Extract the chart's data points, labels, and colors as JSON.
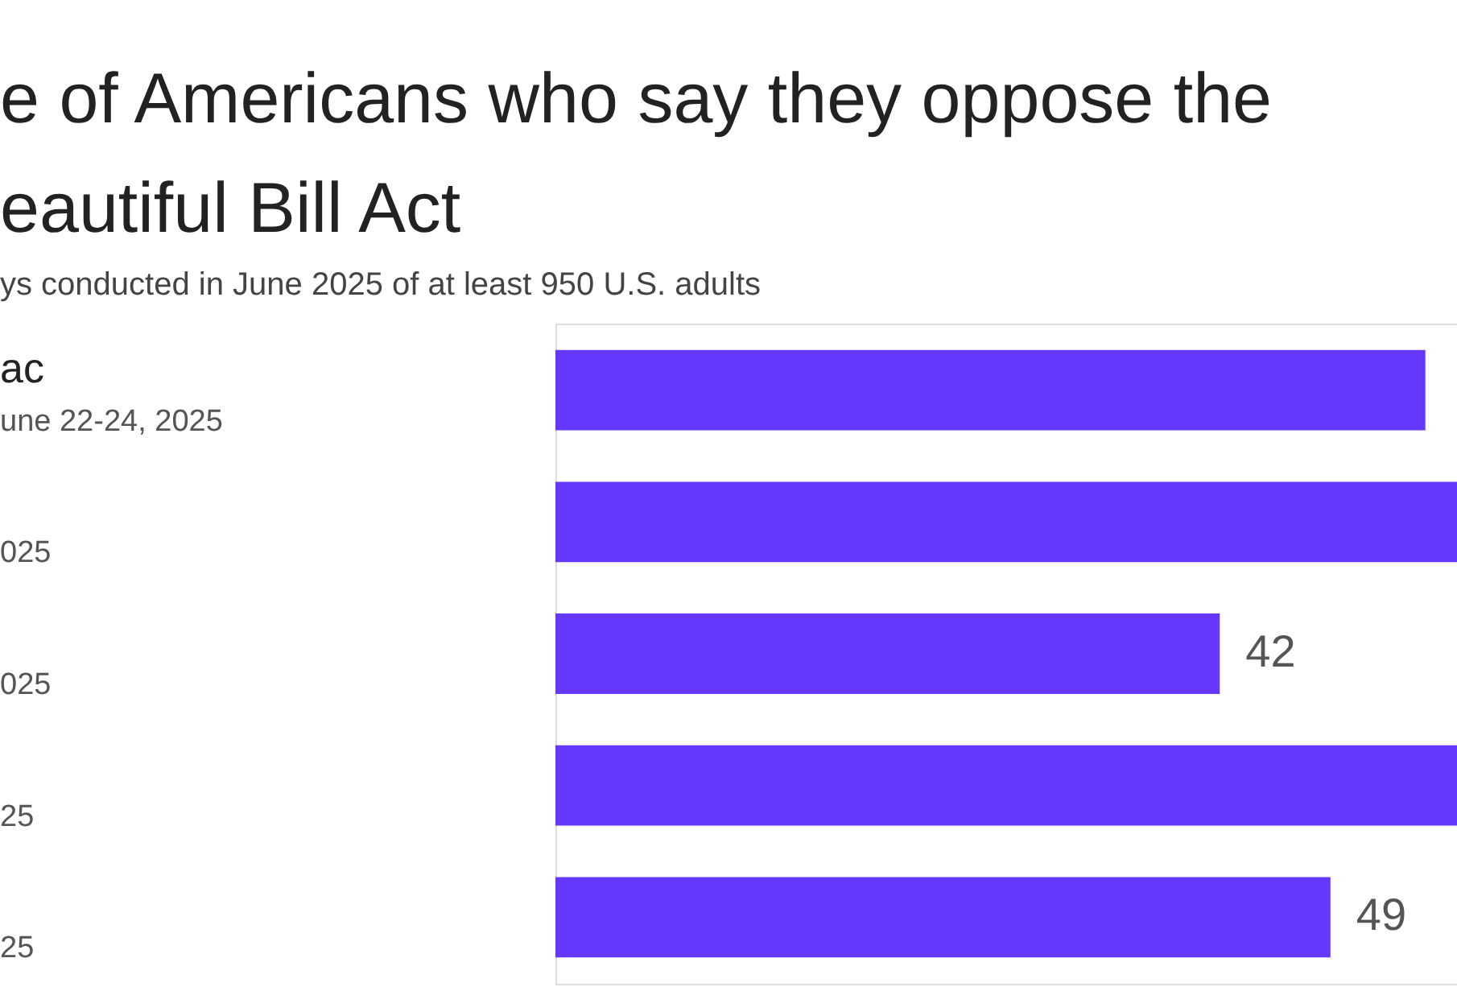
{
  "chart_data": {
    "type": "bar",
    "orientation": "horizontal",
    "title": [
      "e of Americans who say they oppose the",
      "eautiful Bill Act"
    ],
    "subtitle": "ys conducted in June 2025 of at least 950 U.S. adults",
    "categories": [
      "ac\nune 22-24, 2025",
      "\n025",
      "\n025",
      "\n25",
      "\n25"
    ],
    "values": [
      55,
      57,
      42,
      57,
      49
    ],
    "value_labels": [
      null,
      null,
      "42",
      null,
      "49"
    ],
    "color": "#6638ff",
    "xlim": [
      0,
      57
    ],
    "tick_labels": false,
    "grid": false
  }
}
